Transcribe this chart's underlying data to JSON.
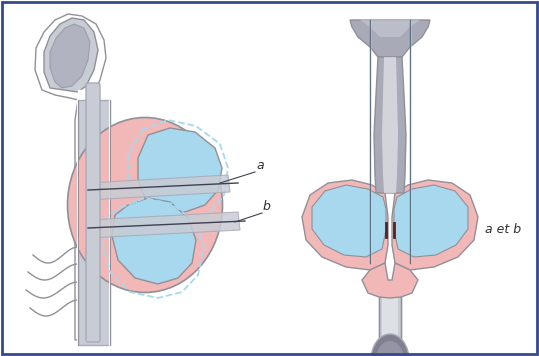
{
  "bg_color": "#ffffff",
  "border_color": "#354a8a",
  "pink": "#f2b8b8",
  "blue": "#a8d8ee",
  "light_gray": "#c8ccd4",
  "mid_gray": "#a8aab8",
  "dark_gray": "#808090",
  "outline": "#909098",
  "white": "#ffffff",
  "needle_color": "#607080",
  "dark_line": "#404050",
  "label_a": "a",
  "label_b": "b",
  "label_ab": "a et b",
  "text_color": "#303030",
  "urethra_color": "#5a2020"
}
